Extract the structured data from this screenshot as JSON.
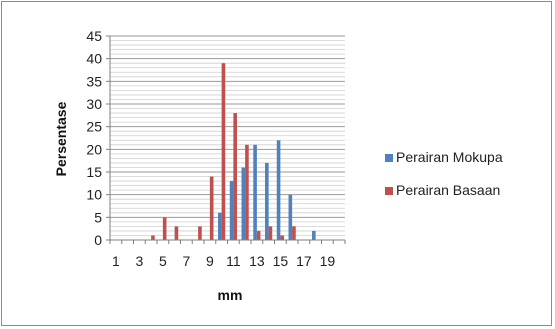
{
  "chart_data": {
    "type": "bar",
    "xlabel": "mm",
    "ylabel": "Persentase",
    "ylim": [
      0,
      45
    ],
    "yticks": [
      0,
      5,
      10,
      15,
      20,
      25,
      30,
      35,
      40,
      45
    ],
    "categories": [
      "1",
      "2",
      "3",
      "4",
      "5",
      "6",
      "7",
      "8",
      "9",
      "10",
      "11",
      "12",
      "13",
      "14",
      "15",
      "16",
      "17",
      "18",
      "19",
      "20"
    ],
    "category_tick_labels": [
      "1",
      "3",
      "5",
      "7",
      "9",
      "11",
      "13",
      "15",
      "17",
      "19"
    ],
    "grid": true,
    "legend_position": "right",
    "series": [
      {
        "name": "Perairan Mokupa",
        "color": "#4f81bd",
        "values": [
          0,
          0,
          0,
          0,
          0,
          0,
          0,
          0,
          0,
          6,
          13,
          16,
          21,
          17,
          22,
          10,
          0,
          2,
          0,
          0
        ]
      },
      {
        "name": "Perairan Basaan",
        "color": "#c0504d",
        "values": [
          0,
          0,
          0,
          1,
          5,
          3,
          0,
          3,
          14,
          39,
          28,
          21,
          2,
          3,
          1,
          3,
          0,
          0,
          0,
          0
        ]
      }
    ]
  }
}
